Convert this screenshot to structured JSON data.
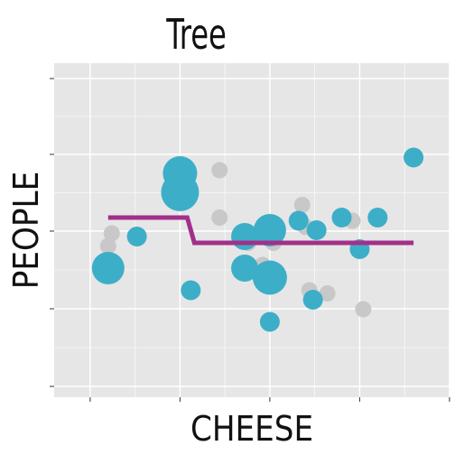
{
  "chart_data": {
    "type": "scatter",
    "title": "Tree",
    "xlabel": "CHEESE",
    "ylabel": "PEOPLE",
    "xlim": [
      0,
      10
    ],
    "ylim": [
      0,
      10
    ],
    "x_ticks": [
      0.5,
      3,
      5.5,
      8,
      10.5
    ],
    "y_ticks": [
      0,
      2,
      4,
      6,
      8
    ],
    "grid": true,
    "colors": {
      "panel": "#e6e6e6",
      "grid": "#ffffff",
      "highlight": "#3daec8",
      "background_points": "#c8c8c8",
      "step_line": "#a2308a"
    },
    "background_points": [
      {
        "x": 1.1,
        "y": 4.9,
        "r": 9
      },
      {
        "x": 1.0,
        "y": 4.5,
        "r": 9
      },
      {
        "x": 4.1,
        "y": 6.9,
        "r": 9
      },
      {
        "x": 4.1,
        "y": 5.4,
        "r": 9
      },
      {
        "x": 4.9,
        "y": 4.6,
        "r": 9
      },
      {
        "x": 5.6,
        "y": 4.6,
        "r": 9
      },
      {
        "x": 6.5,
        "y": 5.1,
        "r": 9
      },
      {
        "x": 6.4,
        "y": 5.8,
        "r": 9
      },
      {
        "x": 5.3,
        "y": 3.9,
        "r": 9
      },
      {
        "x": 6.6,
        "y": 3.1,
        "r": 9
      },
      {
        "x": 7.1,
        "y": 3.0,
        "r": 9
      },
      {
        "x": 8.1,
        "y": 2.5,
        "r": 9
      },
      {
        "x": 7.8,
        "y": 5.3,
        "r": 9
      }
    ],
    "highlight_points": [
      {
        "x": 1.0,
        "y": 3.8,
        "r": 18
      },
      {
        "x": 1.8,
        "y": 4.8,
        "r": 11
      },
      {
        "x": 3.0,
        "y": 6.8,
        "r": 19
      },
      {
        "x": 3.0,
        "y": 6.2,
        "r": 21
      },
      {
        "x": 3.3,
        "y": 3.1,
        "r": 11
      },
      {
        "x": 4.8,
        "y": 4.8,
        "r": 15
      },
      {
        "x": 4.8,
        "y": 3.8,
        "r": 15
      },
      {
        "x": 5.5,
        "y": 5.0,
        "r": 18
      },
      {
        "x": 5.5,
        "y": 3.5,
        "r": 19
      },
      {
        "x": 5.5,
        "y": 2.1,
        "r": 11
      },
      {
        "x": 6.3,
        "y": 5.3,
        "r": 11
      },
      {
        "x": 6.8,
        "y": 5.0,
        "r": 11
      },
      {
        "x": 7.5,
        "y": 5.4,
        "r": 11
      },
      {
        "x": 8.5,
        "y": 5.4,
        "r": 11
      },
      {
        "x": 8.0,
        "y": 4.4,
        "r": 11
      },
      {
        "x": 6.7,
        "y": 2.8,
        "r": 11
      },
      {
        "x": 9.5,
        "y": 7.3,
        "r": 11
      }
    ],
    "step_line": [
      {
        "x": 1.0,
        "y": 5.4
      },
      {
        "x": 3.2,
        "y": 5.4
      },
      {
        "x": 3.4,
        "y": 4.6
      },
      {
        "x": 9.5,
        "y": 4.6
      }
    ]
  }
}
